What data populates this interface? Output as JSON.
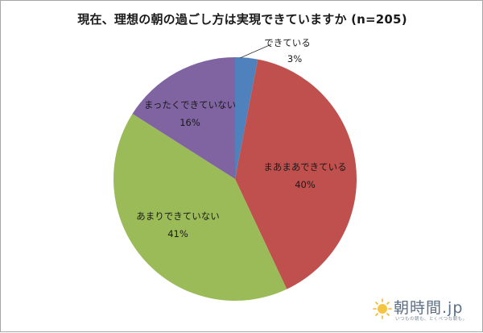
{
  "title": "現在、理想の朝の過ごし方は実現できていますか (n=205)",
  "chart_data": {
    "type": "pie",
    "title": "現在、理想の朝の過ごし方は実現できていますか (n=205)",
    "n": 205,
    "start_angle": "12 o'clock",
    "direction": "clockwise",
    "categories": [
      "できている",
      "まあまあできている",
      "あまりできていない",
      "まったくできていない"
    ],
    "values": [
      3,
      40,
      41,
      16
    ],
    "unit": "%",
    "colors": [
      "#4f81bd",
      "#c0504d",
      "#9bbb59",
      "#8064a2"
    ],
    "labels": [
      {
        "name": "できている",
        "pct": "3%"
      },
      {
        "name": "まあまあできている",
        "pct": "40%"
      },
      {
        "name": "あまりできていない",
        "pct": "41%"
      },
      {
        "name": "まったくできていない",
        "pct": "16%"
      }
    ],
    "legend": "none (data labels on slices)"
  },
  "logo": {
    "brand": "朝時間.jp",
    "tagline": "いつもの朝も、とくべつな朝も。"
  }
}
